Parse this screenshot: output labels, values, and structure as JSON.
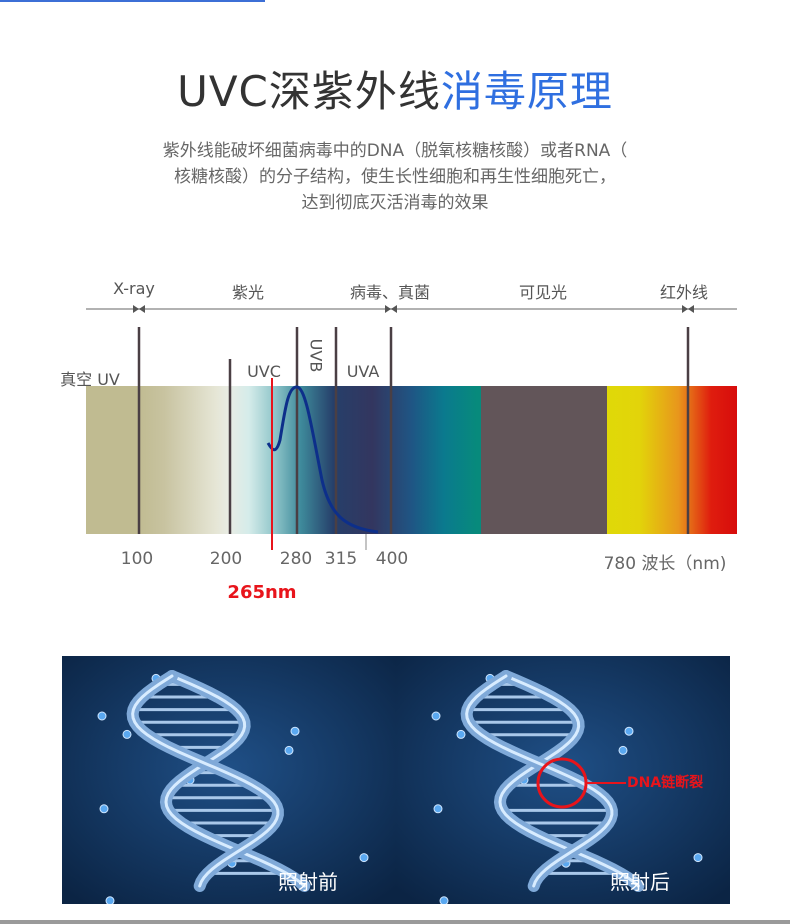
{
  "title": {
    "part1": "UVC深紫外线",
    "part2": "消毒原理"
  },
  "description": [
    "紫外线能破坏细菌病毒中的DNA（脱氧核糖核酸）或者RNA（",
    "核糖核酸）的分子结构，使生长性细胞和再生性细胞死亡，",
    "达到彻底灭活消毒的效果"
  ],
  "spectrum": {
    "regions": [
      "X-ray",
      "紫光",
      "病毒、真菌",
      "可见光",
      "红外线"
    ],
    "bands": {
      "vacuum": "真空 UV",
      "uvc": "UVC",
      "uvb": "UVB",
      "uva": "UVA"
    },
    "ticks": [
      "100",
      "200",
      "280",
      "315",
      "400",
      "780 波长（nm)"
    ],
    "highlight": "265nm",
    "colors": {
      "highlight": "#e8141b",
      "curve": "#0d2f8a",
      "visible_gray": "#625559"
    }
  },
  "images": {
    "before": "照射前",
    "after": "照射后",
    "annotation": "DNA链断裂"
  }
}
